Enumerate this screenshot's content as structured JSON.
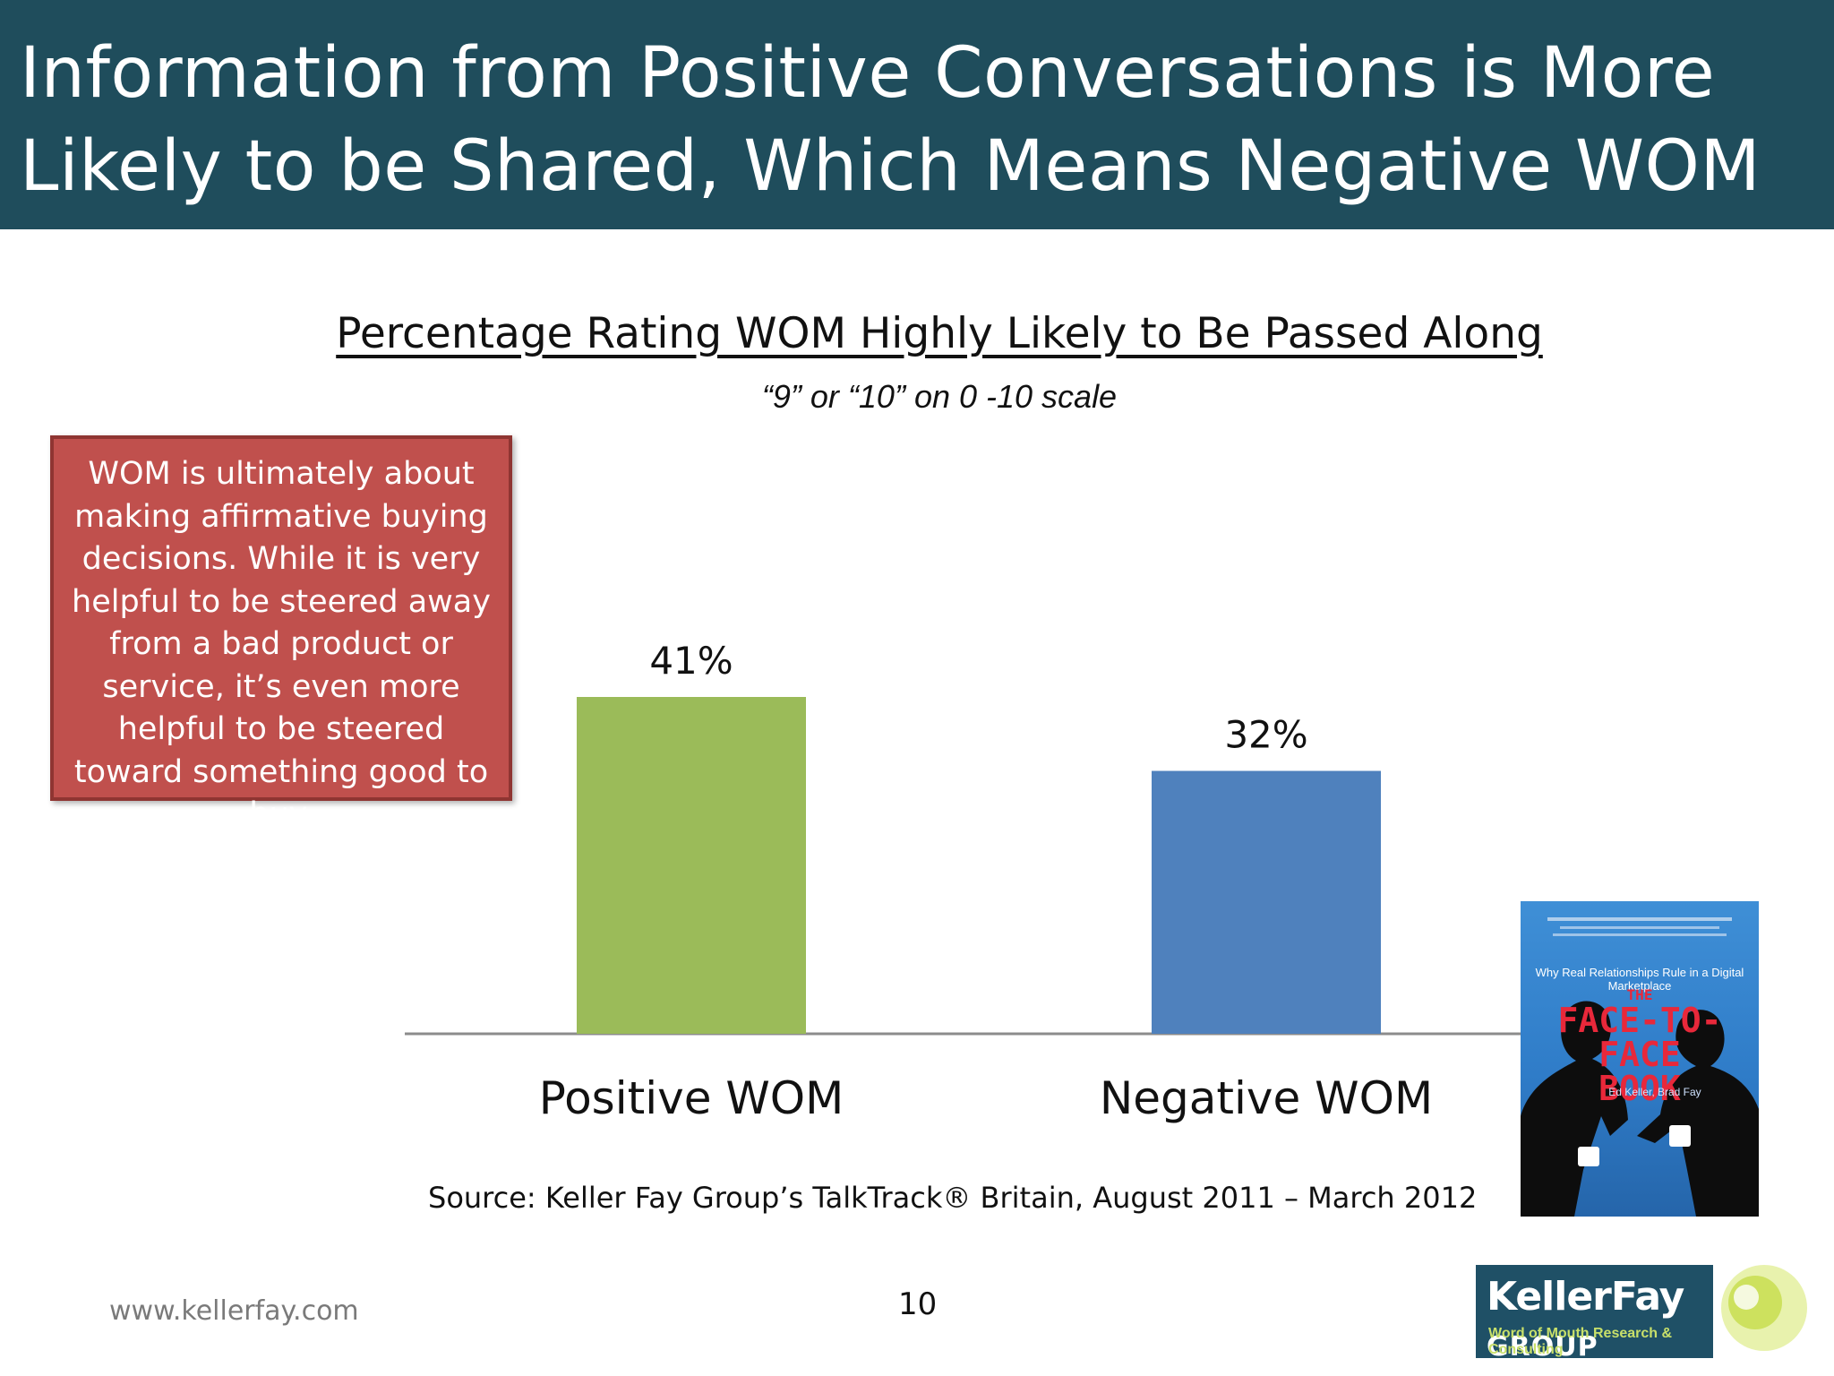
{
  "header": {
    "title": "Information from Positive Conversations is More Likely to be Shared, Which Means Negative WOM is Less Viral"
  },
  "callout": {
    "text": "WOM is ultimately about making affirmative buying decisions. While it is very helpful to be steered away from a bad product or service, it’s even more helpful to be steered toward something good to buy."
  },
  "chart_data": {
    "type": "bar",
    "title": "Percentage Rating WOM Highly Likely to Be Passed Along",
    "subtitle": "“9” or “10” on 0 -10 scale",
    "categories": [
      "Positive WOM",
      "Negative WOM"
    ],
    "values": [
      41,
      32
    ],
    "value_labels": [
      "41%",
      "32%"
    ],
    "colors": [
      "#9bbb59",
      "#4f81bd"
    ],
    "ylim": [
      0,
      41
    ],
    "grid": false,
    "legend": "none"
  },
  "footer": {
    "source": "Source:  Keller Fay Group’s TalkTrack® Britain, August 2011 – March 2012",
    "website": "www.kellerfay.com",
    "page_number": "10"
  },
  "book": {
    "tagline": "Why Real Relationships Rule in a Digital Marketplace",
    "title_the": "THE",
    "title_main": "FACE-TO-FACE",
    "title_word": "BOOK",
    "authors": "Ed Keller, Brad Fay"
  },
  "logo": {
    "name": "KellerFay",
    "group": "GROUP",
    "tagline": "Word of Mouth Research & Consulting"
  },
  "colors": {
    "header_bg": "#1f4d5c",
    "callout_bg": "#c0504d",
    "positive_bar": "#9bbb59",
    "negative_bar": "#4f81bd"
  }
}
